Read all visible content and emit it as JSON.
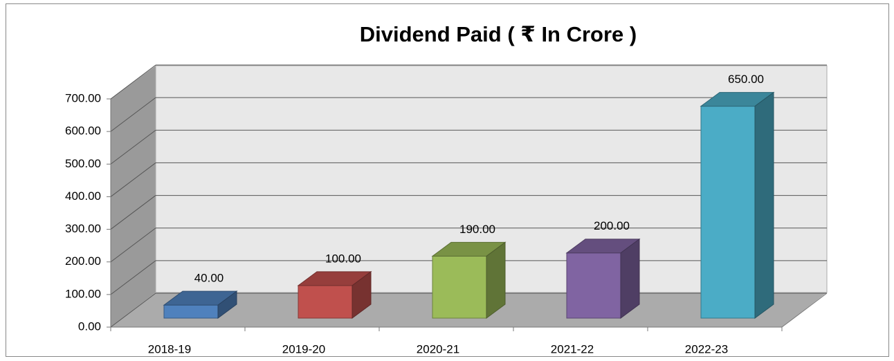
{
  "chart_data": {
    "type": "bar3d",
    "title": "Dividend Paid ( ₹ In Crore )",
    "categories": [
      "2018-19",
      "2019-20",
      "2020-21",
      "2021-22",
      "2022-23"
    ],
    "values": [
      40,
      100,
      190,
      200,
      650
    ],
    "value_labels": [
      "40.00",
      "100.00",
      "190.00",
      "200.00",
      "650.00"
    ],
    "colors": [
      "#4f81bd",
      "#c0504d",
      "#9bbb59",
      "#8064a2",
      "#4bacc6"
    ],
    "ylim": [
      0,
      700
    ],
    "yticks": [
      {
        "value": 0,
        "label": "0.00"
      },
      {
        "value": 100,
        "label": "100.00"
      },
      {
        "value": 200,
        "label": "200.00"
      },
      {
        "value": 300,
        "label": "300.00"
      },
      {
        "value": 400,
        "label": "400.00"
      },
      {
        "value": 500,
        "label": "500.00"
      },
      {
        "value": 600,
        "label": "600.00"
      },
      {
        "value": 700,
        "label": "700.00"
      }
    ],
    "grid": true
  }
}
